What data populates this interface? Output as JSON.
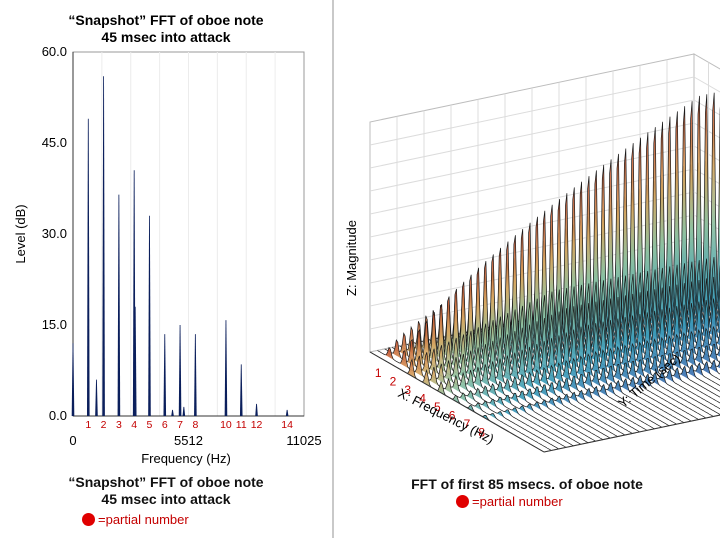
{
  "chart_data": [
    {
      "type": "bar",
      "title": [
        "“Snapshot” FFT of oboe note",
        "45 msec into attack"
      ],
      "xlabel": "Frequency (Hz)",
      "ylabel": "Level (dB)",
      "xlim": [
        0,
        11025
      ],
      "ylim": [
        0,
        60
      ],
      "xticks": [
        {
          "value": 0,
          "label": "0"
        },
        {
          "value": 5512,
          "label": "5512"
        },
        {
          "value": 11025,
          "label": "11025"
        }
      ],
      "yticks": [
        {
          "value": 0,
          "label": "0.0"
        },
        {
          "value": 15,
          "label": "15.0"
        },
        {
          "value": 30,
          "label": "30.0"
        },
        {
          "value": 45,
          "label": "45.0"
        },
        {
          "value": 60,
          "label": "60.0"
        }
      ],
      "peaks": [
        {
          "freq": 0,
          "level": 12.0
        },
        {
          "freq": 730,
          "level": 49.0
        },
        {
          "freq": 1120,
          "level": 6.0
        },
        {
          "freq": 1460,
          "level": 56.0
        },
        {
          "freq": 2190,
          "level": 36.5
        },
        {
          "freq": 2920,
          "level": 40.5
        },
        {
          "freq": 2970,
          "level": 18.0
        },
        {
          "freq": 3650,
          "level": 33.0
        },
        {
          "freq": 4380,
          "level": 13.5
        },
        {
          "freq": 4750,
          "level": 1.0
        },
        {
          "freq": 5110,
          "level": 15.0
        },
        {
          "freq": 5290,
          "level": 1.5
        },
        {
          "freq": 5840,
          "level": 13.5
        },
        {
          "freq": 7300,
          "level": 15.8
        },
        {
          "freq": 8030,
          "level": 8.5
        },
        {
          "freq": 8760,
          "level": 2.0
        },
        {
          "freq": 10220,
          "level": 1.0
        }
      ],
      "partials": [
        {
          "n": "1",
          "freq": 730
        },
        {
          "n": "2",
          "freq": 1460
        },
        {
          "n": "3",
          "freq": 2190
        },
        {
          "n": "4",
          "freq": 2920
        },
        {
          "n": "5",
          "freq": 3650
        },
        {
          "n": "6",
          "freq": 4380
        },
        {
          "n": "7",
          "freq": 5110
        },
        {
          "n": "8",
          "freq": 5840
        },
        {
          "n": "10",
          "freq": 7300
        },
        {
          "n": "11",
          "freq": 8030
        },
        {
          "n": "12",
          "freq": 8760
        },
        {
          "n": "14",
          "freq": 10220
        }
      ],
      "colors": {
        "bars": "#0b1f5c",
        "partial_labels": "#c40000"
      }
    },
    {
      "type": "surface3d",
      "xlabel": "X: Frequency (Hz)",
      "ylabel": "Y: Time (sec)",
      "zlabel": "Z: Magnitude",
      "partials": [
        "1",
        "2",
        "3",
        "4",
        "5",
        "6",
        "7",
        "8"
      ],
      "ridge_peak_magnitude": [
        0.62,
        1.0,
        0.42,
        0.35,
        0.28,
        0.16,
        0.12,
        0.08
      ],
      "time_slices": 45
    }
  ],
  "left_caption": {
    "line1": "“Snapshot” FFT of oboe note",
    "line2": "45 msec into attack",
    "legend": "=partial number"
  },
  "right_caption": {
    "line1": "FFT of first 85 msecs. of oboe note",
    "legend": "=partial number"
  }
}
